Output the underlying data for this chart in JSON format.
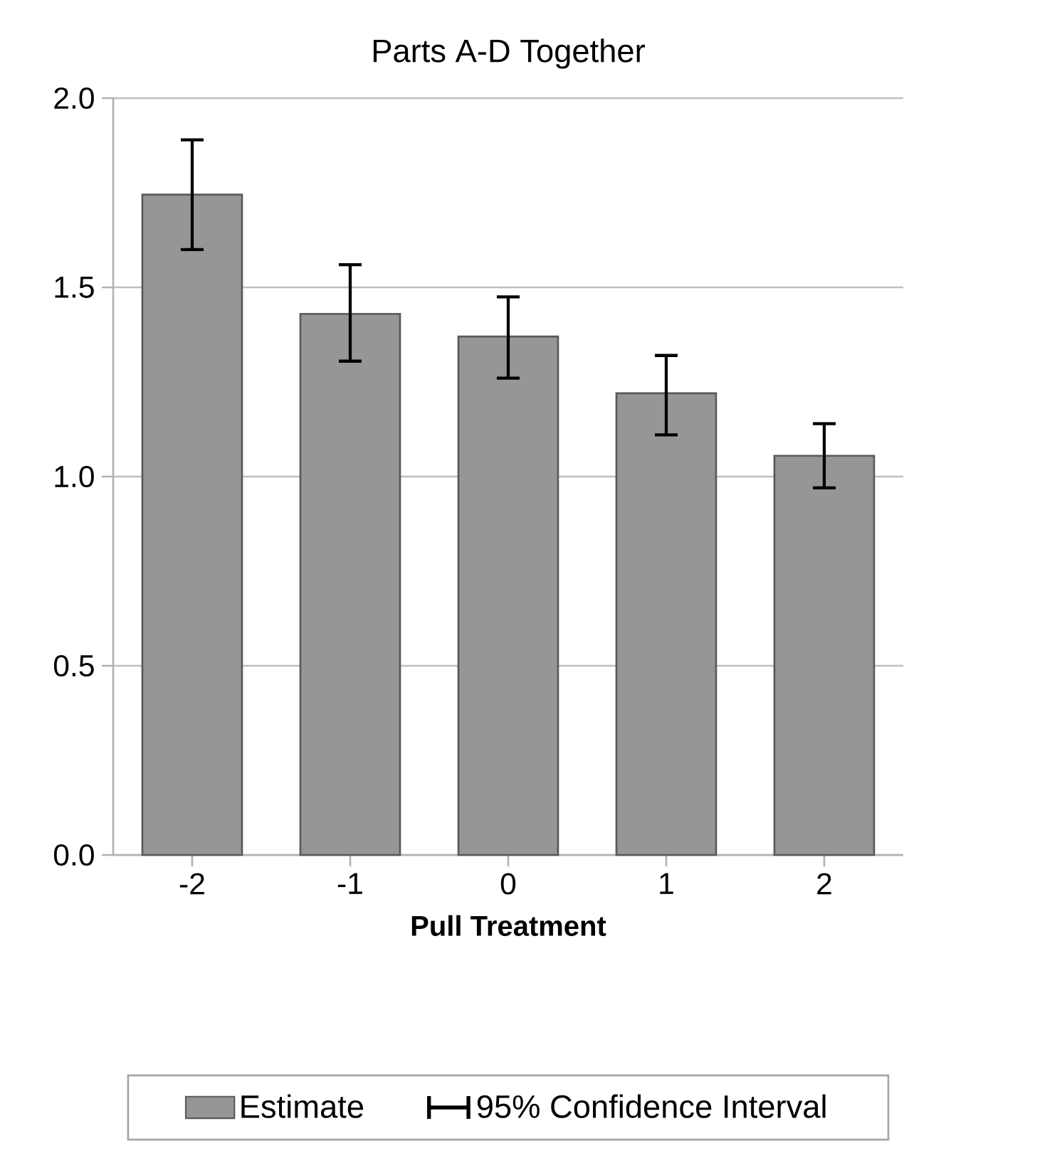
{
  "chart_data": {
    "type": "bar",
    "title": "Parts A-D Together",
    "xlabel": "Pull Treatment",
    "categories": [
      "-2",
      "-1",
      "0",
      "1",
      "2"
    ],
    "series": [
      {
        "name": "Estimate",
        "color": "#969696",
        "values": [
          1.745,
          1.43,
          1.37,
          1.22,
          1.055
        ],
        "errors": [
          [
            1.6,
            1.89
          ],
          [
            1.305,
            1.56
          ],
          [
            1.26,
            1.475
          ],
          [
            1.11,
            1.32
          ],
          [
            0.97,
            1.14
          ]
        ]
      }
    ],
    "ylim": [
      0,
      2
    ],
    "yticks": [
      {
        "value": 0,
        "label": "0.0"
      },
      {
        "value": 0.5,
        "label": "0.5"
      },
      {
        "value": 1,
        "label": "1.0"
      },
      {
        "value": 1.5,
        "label": "1.5"
      },
      {
        "value": 2,
        "label": "2.0"
      }
    ],
    "grid": "y",
    "legend": "bottom",
    "annotations": [
      "95% Confidence Interval"
    ]
  }
}
